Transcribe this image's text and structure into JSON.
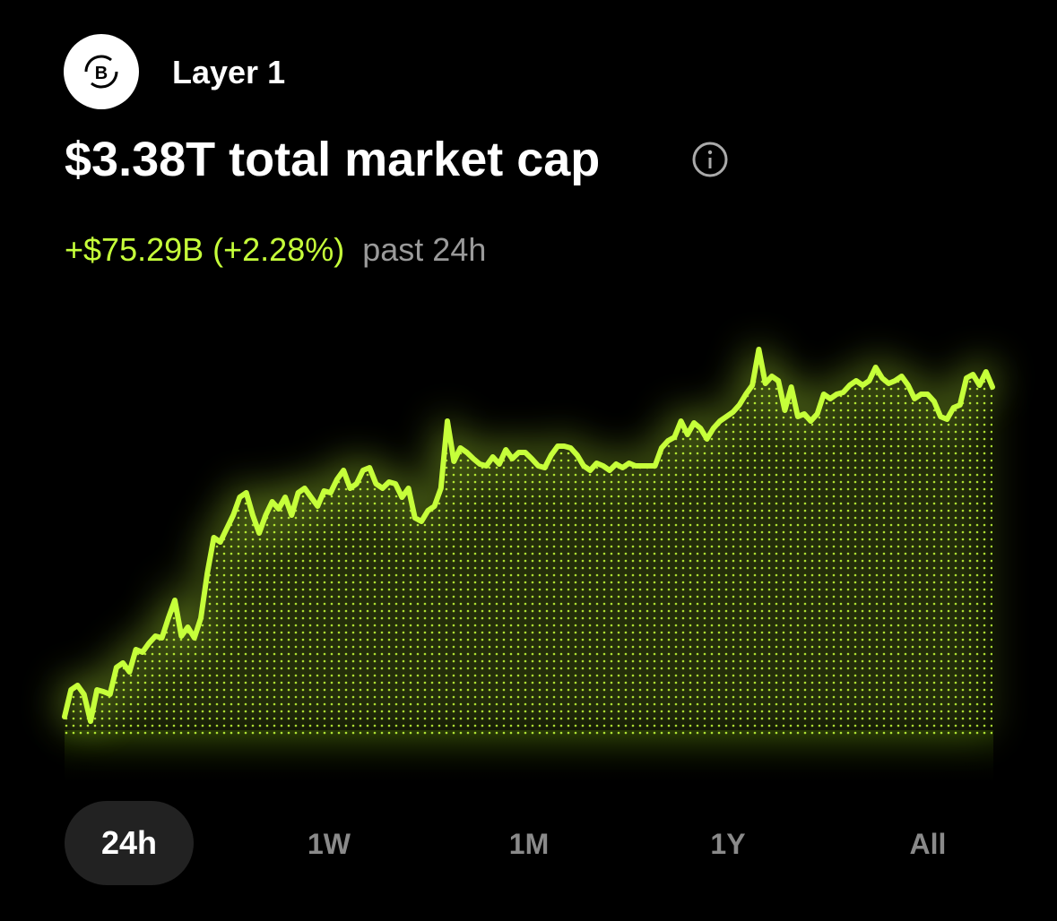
{
  "header": {
    "label": "Layer 1"
  },
  "headline": "$3.38T total market cap",
  "change": {
    "amount": "+$75.29B (+2.28%)",
    "period": "past 24h"
  },
  "chart_data": {
    "type": "line",
    "color": "#c6ff3a",
    "ylim": [
      3.3,
      3.4
    ],
    "values": [
      3.305,
      3.311,
      3.312,
      3.31,
      3.304,
      3.311,
      3.3106,
      3.31,
      3.316,
      3.317,
      3.315,
      3.32,
      3.3194,
      3.3214,
      3.323,
      3.3226,
      3.327,
      3.331,
      3.323,
      3.325,
      3.3226,
      3.327,
      3.337,
      3.345,
      3.344,
      3.347,
      3.35,
      3.354,
      3.355,
      3.35,
      3.346,
      3.35,
      3.353,
      3.3514,
      3.354,
      3.35,
      3.355,
      3.356,
      3.354,
      3.352,
      3.3554,
      3.355,
      3.358,
      3.36,
      3.356,
      3.357,
      3.36,
      3.3606,
      3.357,
      3.356,
      3.3574,
      3.357,
      3.354,
      3.356,
      3.3494,
      3.3486,
      3.351,
      3.352,
      3.356,
      3.371,
      3.362,
      3.365,
      3.364,
      3.3626,
      3.3614,
      3.361,
      3.363,
      3.3614,
      3.3646,
      3.3626,
      3.364,
      3.364,
      3.3626,
      3.361,
      3.3606,
      3.3634,
      3.3654,
      3.3654,
      3.365,
      3.3634,
      3.361,
      3.36,
      3.3616,
      3.361,
      3.36,
      3.3614,
      3.3606,
      3.3616,
      3.361,
      3.361,
      3.361,
      3.361,
      3.365,
      3.3666,
      3.3674,
      3.371,
      3.368,
      3.3706,
      3.3694,
      3.367,
      3.3694,
      3.371,
      3.372,
      3.373,
      3.3746,
      3.377,
      3.379,
      3.387,
      3.3794,
      3.381,
      3.38,
      3.3734,
      3.3786,
      3.372,
      3.3726,
      3.371,
      3.3726,
      3.377,
      3.376,
      3.377,
      3.3774,
      3.379,
      3.38,
      3.379,
      3.38,
      3.383,
      3.3806,
      3.3794,
      3.38,
      3.381,
      3.379,
      3.376,
      3.377,
      3.377,
      3.3754,
      3.372,
      3.3714,
      3.374,
      3.3746,
      3.3806,
      3.3814,
      3.379,
      3.382,
      3.3786
    ]
  },
  "ranges": [
    "24h",
    "1W",
    "1M",
    "1Y",
    "All"
  ],
  "selected_range": 0
}
